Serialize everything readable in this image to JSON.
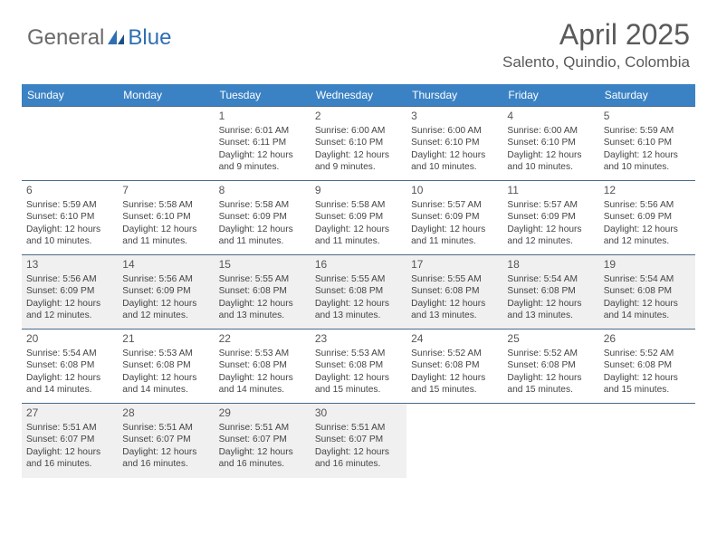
{
  "logo": {
    "text_general": "General",
    "text_blue": "Blue"
  },
  "title": "April 2025",
  "location": "Salento, Quindio, Colombia",
  "colors": {
    "header_bg": "#3b82c4",
    "header_text": "#ffffff",
    "cell_border": "#4a6a8a",
    "shaded_bg": "#f0f0f0",
    "body_text": "#444444",
    "logo_gray": "#6a6a6a",
    "logo_blue": "#2f6fb3"
  },
  "weekdays": [
    "Sunday",
    "Monday",
    "Tuesday",
    "Wednesday",
    "Thursday",
    "Friday",
    "Saturday"
  ],
  "first_weekday_index": 2,
  "days_in_month": 30,
  "shaded_days": [
    13,
    14,
    15,
    16,
    17,
    18,
    19,
    27,
    28,
    29,
    30
  ],
  "days": {
    "1": {
      "sunrise": "6:01 AM",
      "sunset": "6:11 PM",
      "daylight": "12 hours and 9 minutes."
    },
    "2": {
      "sunrise": "6:00 AM",
      "sunset": "6:10 PM",
      "daylight": "12 hours and 9 minutes."
    },
    "3": {
      "sunrise": "6:00 AM",
      "sunset": "6:10 PM",
      "daylight": "12 hours and 10 minutes."
    },
    "4": {
      "sunrise": "6:00 AM",
      "sunset": "6:10 PM",
      "daylight": "12 hours and 10 minutes."
    },
    "5": {
      "sunrise": "5:59 AM",
      "sunset": "6:10 PM",
      "daylight": "12 hours and 10 minutes."
    },
    "6": {
      "sunrise": "5:59 AM",
      "sunset": "6:10 PM",
      "daylight": "12 hours and 10 minutes."
    },
    "7": {
      "sunrise": "5:58 AM",
      "sunset": "6:10 PM",
      "daylight": "12 hours and 11 minutes."
    },
    "8": {
      "sunrise": "5:58 AM",
      "sunset": "6:09 PM",
      "daylight": "12 hours and 11 minutes."
    },
    "9": {
      "sunrise": "5:58 AM",
      "sunset": "6:09 PM",
      "daylight": "12 hours and 11 minutes."
    },
    "10": {
      "sunrise": "5:57 AM",
      "sunset": "6:09 PM",
      "daylight": "12 hours and 11 minutes."
    },
    "11": {
      "sunrise": "5:57 AM",
      "sunset": "6:09 PM",
      "daylight": "12 hours and 12 minutes."
    },
    "12": {
      "sunrise": "5:56 AM",
      "sunset": "6:09 PM",
      "daylight": "12 hours and 12 minutes."
    },
    "13": {
      "sunrise": "5:56 AM",
      "sunset": "6:09 PM",
      "daylight": "12 hours and 12 minutes."
    },
    "14": {
      "sunrise": "5:56 AM",
      "sunset": "6:09 PM",
      "daylight": "12 hours and 12 minutes."
    },
    "15": {
      "sunrise": "5:55 AM",
      "sunset": "6:08 PM",
      "daylight": "12 hours and 13 minutes."
    },
    "16": {
      "sunrise": "5:55 AM",
      "sunset": "6:08 PM",
      "daylight": "12 hours and 13 minutes."
    },
    "17": {
      "sunrise": "5:55 AM",
      "sunset": "6:08 PM",
      "daylight": "12 hours and 13 minutes."
    },
    "18": {
      "sunrise": "5:54 AM",
      "sunset": "6:08 PM",
      "daylight": "12 hours and 13 minutes."
    },
    "19": {
      "sunrise": "5:54 AM",
      "sunset": "6:08 PM",
      "daylight": "12 hours and 14 minutes."
    },
    "20": {
      "sunrise": "5:54 AM",
      "sunset": "6:08 PM",
      "daylight": "12 hours and 14 minutes."
    },
    "21": {
      "sunrise": "5:53 AM",
      "sunset": "6:08 PM",
      "daylight": "12 hours and 14 minutes."
    },
    "22": {
      "sunrise": "5:53 AM",
      "sunset": "6:08 PM",
      "daylight": "12 hours and 14 minutes."
    },
    "23": {
      "sunrise": "5:53 AM",
      "sunset": "6:08 PM",
      "daylight": "12 hours and 15 minutes."
    },
    "24": {
      "sunrise": "5:52 AM",
      "sunset": "6:08 PM",
      "daylight": "12 hours and 15 minutes."
    },
    "25": {
      "sunrise": "5:52 AM",
      "sunset": "6:08 PM",
      "daylight": "12 hours and 15 minutes."
    },
    "26": {
      "sunrise": "5:52 AM",
      "sunset": "6:08 PM",
      "daylight": "12 hours and 15 minutes."
    },
    "27": {
      "sunrise": "5:51 AM",
      "sunset": "6:07 PM",
      "daylight": "12 hours and 16 minutes."
    },
    "28": {
      "sunrise": "5:51 AM",
      "sunset": "6:07 PM",
      "daylight": "12 hours and 16 minutes."
    },
    "29": {
      "sunrise": "5:51 AM",
      "sunset": "6:07 PM",
      "daylight": "12 hours and 16 minutes."
    },
    "30": {
      "sunrise": "5:51 AM",
      "sunset": "6:07 PM",
      "daylight": "12 hours and 16 minutes."
    }
  },
  "labels": {
    "sunrise": "Sunrise:",
    "sunset": "Sunset:",
    "daylight": "Daylight:"
  }
}
